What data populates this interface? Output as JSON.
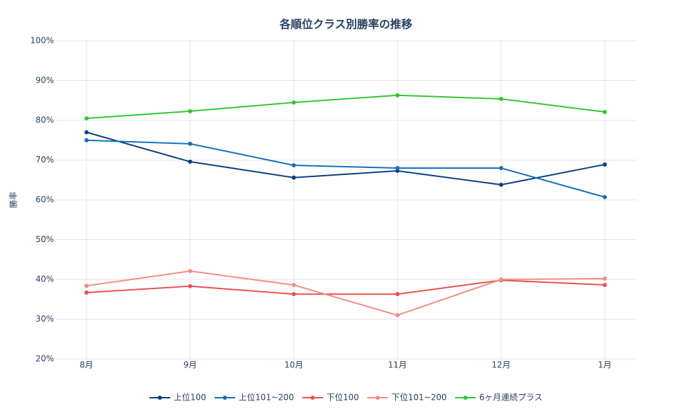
{
  "chart_data": {
    "type": "line",
    "title": "各順位クラス別勝率の推移",
    "y_label": "勝率",
    "categories": [
      "8月",
      "9月",
      "10月",
      "11月",
      "12月",
      "1月"
    ],
    "ylim": [
      20,
      100
    ],
    "yticks": [
      {
        "value": 20,
        "label": "20%"
      },
      {
        "value": 30,
        "label": "30%"
      },
      {
        "value": 40,
        "label": "40%"
      },
      {
        "value": 50,
        "label": "50%"
      },
      {
        "value": 60,
        "label": "60%"
      },
      {
        "value": 70,
        "label": "70%"
      },
      {
        "value": 80,
        "label": "80%"
      },
      {
        "value": 90,
        "label": "90%"
      },
      {
        "value": 100,
        "label": "100%"
      }
    ],
    "grid": true,
    "legend": "bottom",
    "series": [
      {
        "name": "上位100",
        "color": "#0b3f7e",
        "values": [
          77.0,
          69.6,
          65.6,
          67.3,
          63.8,
          68.9
        ]
      },
      {
        "name": "上位101~200",
        "color": "#1570b8",
        "values": [
          75.0,
          74.1,
          68.7,
          68.0,
          68.0,
          60.7
        ]
      },
      {
        "name": "下位100",
        "color": "#e8524f",
        "values": [
          36.7,
          38.3,
          36.3,
          36.3,
          39.8,
          38.6
        ]
      },
      {
        "name": "下位101~200",
        "color": "#f28c84",
        "values": [
          38.4,
          42.1,
          38.6,
          31.0,
          40.0,
          40.2
        ]
      },
      {
        "name": "6ヶ月連続プラス",
        "color": "#33c633",
        "values": [
          80.5,
          82.3,
          84.5,
          86.3,
          85.4,
          82.1
        ]
      }
    ]
  }
}
